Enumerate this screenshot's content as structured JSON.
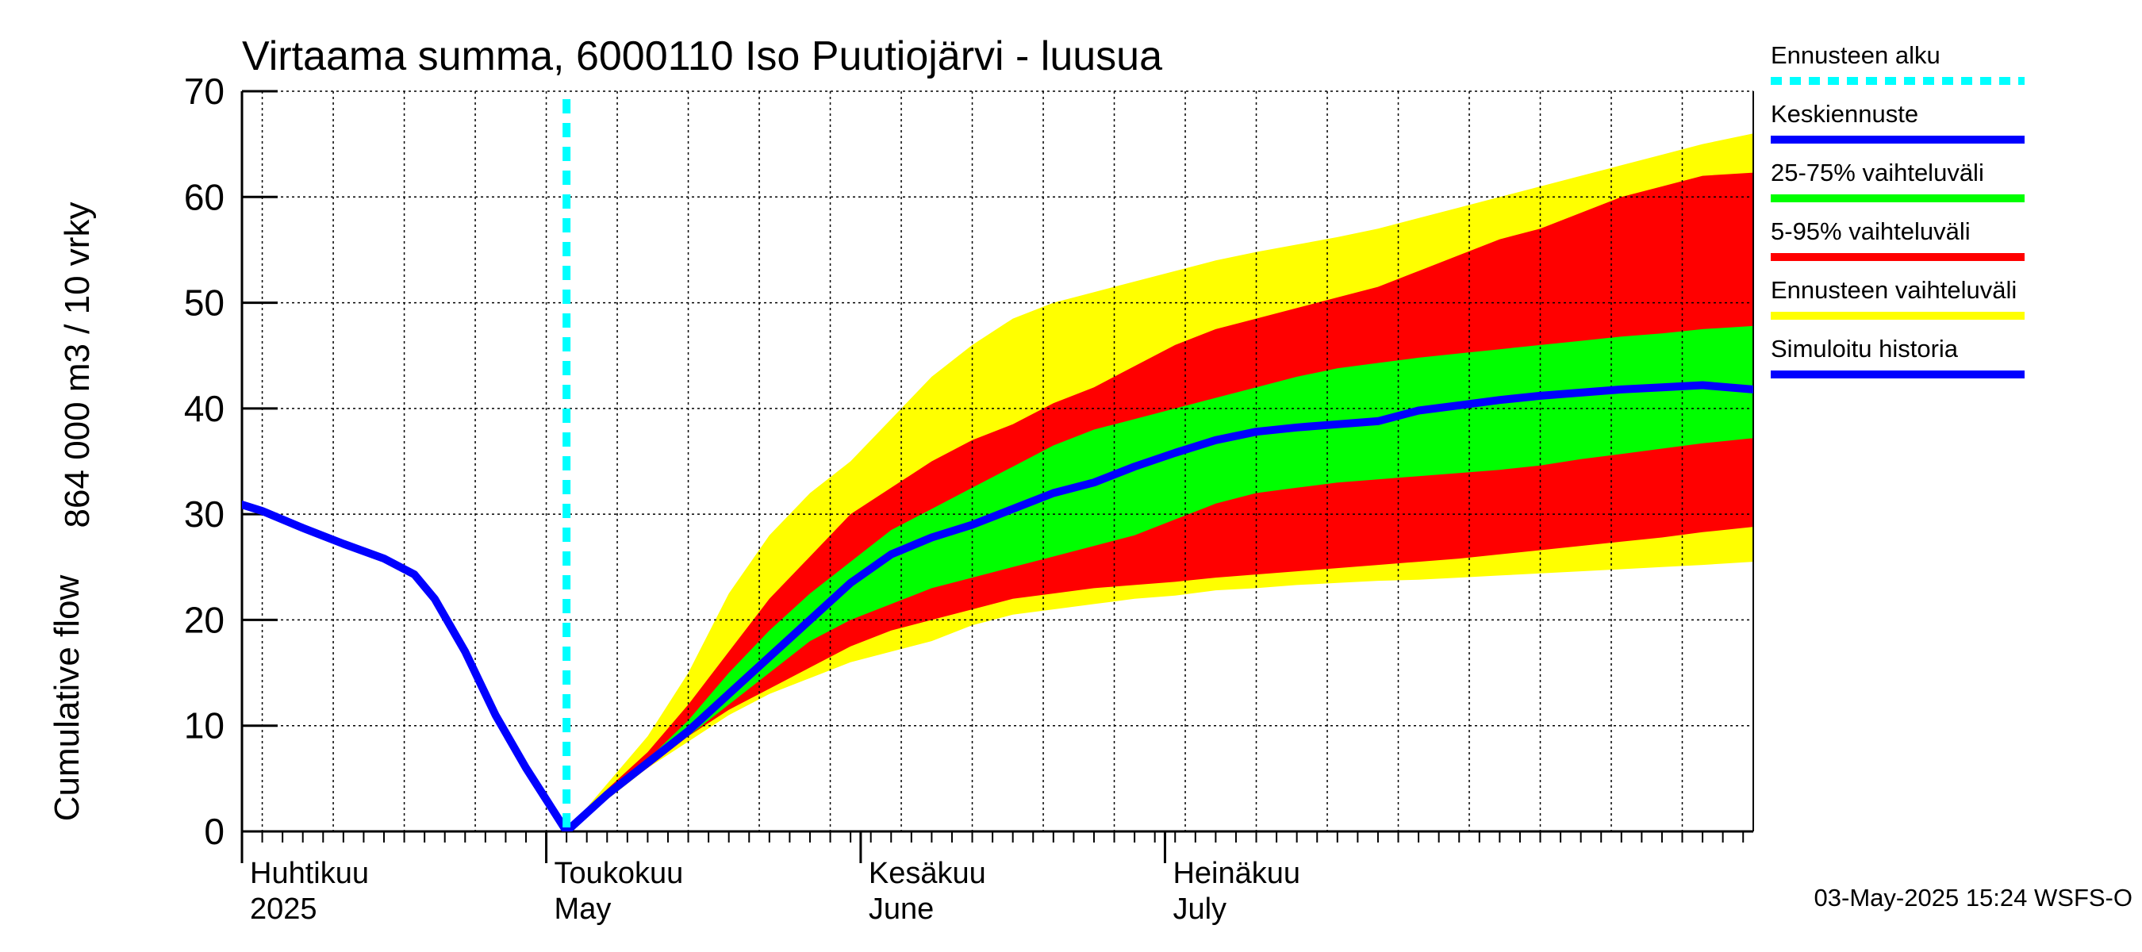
{
  "chart_data": {
    "type": "area",
    "title": "Virtaama summa, 6000110 Iso Puutiojärvi - luusua",
    "ylabel_line1": "Cumulative flow",
    "ylabel_line2": "864 000 m3 / 10 vrky",
    "ylim": [
      0,
      70
    ],
    "yticks": [
      0,
      10,
      20,
      30,
      40,
      50,
      60,
      70
    ],
    "grid": true,
    "x_start": "2025-04-01",
    "x_end": "2025-08-28",
    "forecast_start": "2025-05-03",
    "months": [
      {
        "date": "2025-04-01",
        "fi": "Huhtikuu",
        "en": "2025"
      },
      {
        "date": "2025-05-01",
        "fi": "Toukokuu",
        "en": "May"
      },
      {
        "date": "2025-06-01",
        "fi": "Kesäkuu",
        "en": "June"
      },
      {
        "date": "2025-07-01",
        "fi": "Heinäkuu",
        "en": "July"
      }
    ],
    "history": {
      "name": "Simuloitu historia",
      "color": "#0000ff",
      "points": [
        [
          "2025-03-30",
          31.5
        ],
        [
          "2025-04-03",
          30.3
        ],
        [
          "2025-04-07",
          28.7
        ],
        [
          "2025-04-11",
          27.2
        ],
        [
          "2025-04-15",
          25.8
        ],
        [
          "2025-04-18",
          24.3
        ],
        [
          "2025-04-20",
          22.0
        ],
        [
          "2025-04-23",
          17.0
        ],
        [
          "2025-04-26",
          11.0
        ],
        [
          "2025-04-29",
          6.0
        ],
        [
          "2025-05-01",
          3.0
        ],
        [
          "2025-05-03",
          0.0
        ]
      ]
    },
    "median": {
      "name": "Keskiennuste",
      "color": "#0000ff",
      "points": [
        [
          "2025-05-03",
          0.0
        ],
        [
          "2025-05-07",
          3.5
        ],
        [
          "2025-05-11",
          6.5
        ],
        [
          "2025-05-15",
          9.5
        ],
        [
          "2025-05-19",
          13.0
        ],
        [
          "2025-05-23",
          16.5
        ],
        [
          "2025-05-27",
          20.0
        ],
        [
          "2025-05-31",
          23.5
        ],
        [
          "2025-06-04",
          26.2
        ],
        [
          "2025-06-08",
          27.8
        ],
        [
          "2025-06-12",
          29.0
        ],
        [
          "2025-06-16",
          30.5
        ],
        [
          "2025-06-20",
          32.0
        ],
        [
          "2025-06-24",
          33.0
        ],
        [
          "2025-06-28",
          34.5
        ],
        [
          "2025-07-02",
          35.8
        ],
        [
          "2025-07-06",
          37.0
        ],
        [
          "2025-07-10",
          37.8
        ],
        [
          "2025-07-14",
          38.2
        ],
        [
          "2025-07-18",
          38.5
        ],
        [
          "2025-07-22",
          38.8
        ],
        [
          "2025-07-26",
          39.8
        ],
        [
          "2025-07-30",
          40.3
        ],
        [
          "2025-08-03",
          40.8
        ],
        [
          "2025-08-07",
          41.2
        ],
        [
          "2025-08-11",
          41.5
        ],
        [
          "2025-08-15",
          41.8
        ],
        [
          "2025-08-19",
          42.0
        ],
        [
          "2025-08-23",
          42.2
        ],
        [
          "2025-08-28",
          41.8
        ]
      ]
    },
    "bands": [
      {
        "name": "Ennusteen vaihteluväli",
        "color": "#ffff00",
        "dates": [
          "2025-05-03",
          "2025-05-07",
          "2025-05-11",
          "2025-05-15",
          "2025-05-19",
          "2025-05-23",
          "2025-05-27",
          "2025-05-31",
          "2025-06-04",
          "2025-06-08",
          "2025-06-12",
          "2025-06-16",
          "2025-06-20",
          "2025-06-24",
          "2025-06-28",
          "2025-07-02",
          "2025-07-06",
          "2025-07-10",
          "2025-07-14",
          "2025-07-18",
          "2025-07-22",
          "2025-07-26",
          "2025-07-30",
          "2025-08-03",
          "2025-08-07",
          "2025-08-11",
          "2025-08-15",
          "2025-08-19",
          "2025-08-23",
          "2025-08-28"
        ],
        "low": [
          0.0,
          3.0,
          6.0,
          8.5,
          11.0,
          13.0,
          14.5,
          16.0,
          17.0,
          18.0,
          19.5,
          20.5,
          21.0,
          21.5,
          22.0,
          22.3,
          22.8,
          23.0,
          23.3,
          23.5,
          23.7,
          23.8,
          24.0,
          24.2,
          24.4,
          24.6,
          24.8,
          25.0,
          25.2,
          25.5
        ],
        "high": [
          0.0,
          4.5,
          9.0,
          15.0,
          22.5,
          28.0,
          32.0,
          35.0,
          39.0,
          43.0,
          46.0,
          48.5,
          50.0,
          51.0,
          52.0,
          53.0,
          54.0,
          54.8,
          55.5,
          56.2,
          57.0,
          58.0,
          59.0,
          60.0,
          61.0,
          62.0,
          63.0,
          64.0,
          65.0,
          66.0
        ]
      },
      {
        "name": "5-95% vaihteluväli",
        "color": "#ff0000",
        "dates": [
          "2025-05-03",
          "2025-05-07",
          "2025-05-11",
          "2025-05-15",
          "2025-05-19",
          "2025-05-23",
          "2025-05-27",
          "2025-05-31",
          "2025-06-04",
          "2025-06-08",
          "2025-06-12",
          "2025-06-16",
          "2025-06-20",
          "2025-06-24",
          "2025-06-28",
          "2025-07-02",
          "2025-07-06",
          "2025-07-10",
          "2025-07-14",
          "2025-07-18",
          "2025-07-22",
          "2025-07-26",
          "2025-07-30",
          "2025-08-03",
          "2025-08-07",
          "2025-08-11",
          "2025-08-15",
          "2025-08-19",
          "2025-08-23",
          "2025-08-28"
        ],
        "low": [
          0.0,
          3.2,
          6.0,
          9.0,
          11.5,
          13.5,
          15.5,
          17.5,
          19.0,
          20.0,
          21.0,
          22.0,
          22.5,
          23.0,
          23.3,
          23.6,
          24.0,
          24.3,
          24.6,
          24.9,
          25.2,
          25.5,
          25.8,
          26.2,
          26.6,
          27.0,
          27.4,
          27.8,
          28.3,
          28.8
        ],
        "high": [
          0.0,
          4.0,
          7.5,
          12.0,
          17.0,
          22.0,
          26.0,
          30.0,
          32.5,
          35.0,
          37.0,
          38.5,
          40.5,
          42.0,
          44.0,
          46.0,
          47.5,
          48.5,
          49.5,
          50.5,
          51.5,
          53.0,
          54.5,
          56.0,
          57.0,
          58.5,
          60.0,
          61.0,
          62.0,
          62.3
        ]
      },
      {
        "name": "25-75% vaihteluväli",
        "color": "#00ff00",
        "dates": [
          "2025-05-03",
          "2025-05-07",
          "2025-05-11",
          "2025-05-15",
          "2025-05-19",
          "2025-05-23",
          "2025-05-27",
          "2025-05-31",
          "2025-06-04",
          "2025-06-08",
          "2025-06-12",
          "2025-06-16",
          "2025-06-20",
          "2025-06-24",
          "2025-06-28",
          "2025-07-02",
          "2025-07-06",
          "2025-07-10",
          "2025-07-14",
          "2025-07-18",
          "2025-07-22",
          "2025-07-26",
          "2025-07-30",
          "2025-08-03",
          "2025-08-07",
          "2025-08-11",
          "2025-08-15",
          "2025-08-19",
          "2025-08-23",
          "2025-08-28"
        ],
        "low": [
          0.0,
          3.4,
          6.3,
          9.0,
          12.0,
          15.0,
          18.0,
          20.0,
          21.5,
          23.0,
          24.0,
          25.0,
          26.0,
          27.0,
          28.0,
          29.5,
          31.0,
          32.0,
          32.5,
          33.0,
          33.3,
          33.6,
          33.9,
          34.2,
          34.6,
          35.2,
          35.7,
          36.2,
          36.7,
          37.2
        ],
        "high": [
          0.0,
          3.6,
          6.8,
          10.5,
          15.0,
          19.0,
          22.5,
          25.5,
          28.5,
          30.5,
          32.5,
          34.5,
          36.5,
          38.0,
          39.0,
          40.0,
          41.0,
          42.0,
          43.0,
          43.8,
          44.3,
          44.8,
          45.2,
          45.6,
          46.0,
          46.4,
          46.8,
          47.1,
          47.5,
          47.8
        ]
      }
    ],
    "legend": [
      {
        "label": "Ennusteen alku",
        "color": "#00ffff",
        "style": "dashed"
      },
      {
        "label": "Keskiennuste",
        "color": "#0000ff",
        "style": "solid"
      },
      {
        "label": "25-75% vaihteluväli",
        "color": "#00ff00",
        "style": "solid"
      },
      {
        "label": "5-95% vaihteluväli",
        "color": "#ff0000",
        "style": "solid"
      },
      {
        "label": "Ennusteen vaihteluväli",
        "color": "#ffff00",
        "style": "solid"
      },
      {
        "label": "Simuloitu historia",
        "color": "#0000ff",
        "style": "solid"
      }
    ],
    "timestamp": "03-May-2025 15:24 WSFS-O"
  }
}
